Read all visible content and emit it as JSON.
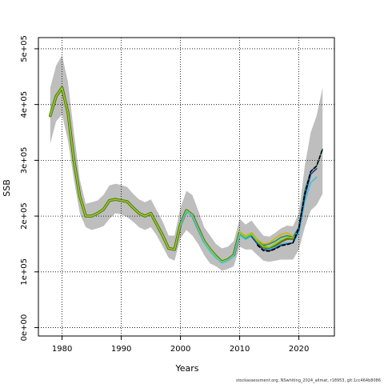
{
  "chart_data": {
    "type": "line",
    "title": "",
    "xlabel": "Years",
    "ylabel": "SSB",
    "xlim": [
      1976,
      2026
    ],
    "ylim": [
      -15000,
      520000
    ],
    "x_ticks": [
      1980,
      1990,
      2000,
      2010,
      2020
    ],
    "y_ticks": [
      0,
      100000,
      200000,
      300000,
      400000,
      500000
    ],
    "y_tick_labels": [
      "0e+00",
      "1e+05",
      "2e+05",
      "3e+05",
      "4e+05",
      "5e+05"
    ],
    "grid": true,
    "grid_style": "dotted",
    "band": {
      "color": "#bebebe",
      "x": [
        1978,
        1979,
        1980,
        1981,
        1982,
        1983,
        1984,
        1985,
        1986,
        1987,
        1988,
        1989,
        1990,
        1991,
        1992,
        1993,
        1994,
        1995,
        1996,
        1997,
        1998,
        1999,
        2000,
        2001,
        2002,
        2003,
        2004,
        2005,
        2006,
        2007,
        2008,
        2009,
        2010,
        2011,
        2012,
        2013,
        2014,
        2015,
        2016,
        2017,
        2018,
        2019,
        2020,
        2021,
        2022,
        2023,
        2024
      ],
      "upper": [
        430000,
        470000,
        488000,
        440000,
        350000,
        265000,
        222000,
        225000,
        228000,
        238000,
        255000,
        258000,
        256000,
        252000,
        240000,
        230000,
        225000,
        230000,
        210000,
        190000,
        165000,
        165000,
        215000,
        245000,
        238000,
        210000,
        180000,
        165000,
        150000,
        142000,
        145000,
        155000,
        195000,
        185000,
        192000,
        178000,
        165000,
        163000,
        170000,
        178000,
        183000,
        182000,
        205000,
        290000,
        350000,
        380000,
        430000
      ],
      "lower": [
        330000,
        370000,
        382000,
        335000,
        265000,
        205000,
        180000,
        175000,
        178000,
        182000,
        195000,
        205000,
        203000,
        198000,
        190000,
        180000,
        175000,
        180000,
        165000,
        145000,
        125000,
        120000,
        160000,
        175000,
        165000,
        150000,
        130000,
        115000,
        110000,
        102000,
        105000,
        110000,
        145000,
        140000,
        140000,
        130000,
        120000,
        118000,
        120000,
        122000,
        122000,
        122000,
        140000,
        180000,
        210000,
        220000,
        240000
      ]
    },
    "series": [
      {
        "color": "#6b6b00",
        "width": 3.6,
        "x": [
          1978,
          1979,
          1980,
          1981,
          1982,
          1983,
          1984,
          1985,
          1986,
          1987,
          1988,
          1989,
          1990,
          1991,
          1992,
          1993,
          1994,
          1995,
          1996,
          1997,
          1998,
          1999,
          2000,
          2001,
          2002,
          2003,
          2004,
          2005,
          2006,
          2007,
          2008,
          2009,
          2010,
          2011,
          2012,
          2013,
          2014,
          2015,
          2016,
          2017,
          2018,
          2019
        ],
        "y": [
          380000,
          415000,
          430000,
          385000,
          300000,
          235000,
          200000,
          200000,
          205000,
          212000,
          228000,
          230000,
          228000,
          226000,
          215000,
          205000,
          200000,
          205000,
          185000,
          165000,
          142000,
          140000,
          185000,
          210000,
          202000,
          178000,
          155000,
          140000,
          128000,
          118000,
          122000,
          130000,
          170000,
          162000,
          168000,
          155000,
          145000,
          142000,
          148000,
          155000,
          160000,
          160000
        ]
      },
      {
        "color": "#2e8b57",
        "width": 1.6,
        "x": [
          1978,
          1979,
          1980,
          1981,
          1982,
          1983,
          1984,
          1985,
          1986,
          1987,
          1988,
          1989,
          1990,
          1991,
          1992,
          1993,
          1994,
          1995,
          1996,
          1997,
          1998,
          1999,
          2000,
          2001,
          2002,
          2003,
          2004,
          2005,
          2006,
          2007,
          2008,
          2009,
          2010,
          2011,
          2012,
          2013,
          2014,
          2015,
          2016,
          2017,
          2018,
          2019,
          2020,
          2021,
          2022,
          2023,
          2024
        ],
        "y": [
          380000,
          415000,
          430000,
          385000,
          300000,
          235000,
          200000,
          200000,
          205000,
          212000,
          228000,
          230000,
          228000,
          226000,
          215000,
          205000,
          200000,
          205000,
          185000,
          165000,
          142000,
          140000,
          185000,
          210000,
          202000,
          178000,
          155000,
          140000,
          128000,
          118000,
          122000,
          130000,
          168000,
          160000,
          166000,
          153000,
          148000,
          150000,
          155000,
          162000,
          165000,
          162000,
          180000,
          245000,
          280000,
          290000,
          320000
        ]
      },
      {
        "color": "#d4b300",
        "width": 1.6,
        "x": [
          2010,
          2011,
          2012,
          2013,
          2014,
          2015,
          2016,
          2017,
          2018,
          2019
        ],
        "y": [
          172000,
          164000,
          170000,
          158000,
          150000,
          152000,
          160000,
          167000,
          170000,
          164000
        ]
      },
      {
        "color": "#7fd632",
        "width": 1.6,
        "x": [
          1978,
          1979,
          1980,
          1981,
          1982,
          1983,
          1984,
          1985,
          1986,
          1987,
          1988,
          1989,
          1990,
          1991,
          1992,
          1993,
          1994,
          1995,
          1996,
          1997,
          1998,
          1999,
          2000,
          2001,
          2002,
          2003,
          2004,
          2005,
          2006,
          2007,
          2008,
          2009,
          2010,
          2011,
          2012,
          2013,
          2014,
          2015,
          2016,
          2017,
          2018,
          2019
        ],
        "y": [
          380000,
          415000,
          430000,
          385000,
          300000,
          235000,
          200000,
          200000,
          205000,
          212000,
          228000,
          230000,
          228000,
          226000,
          215000,
          205000,
          200000,
          205000,
          185000,
          165000,
          142000,
          140000,
          185000,
          210000,
          202000,
          178000,
          155000,
          140000,
          128000,
          118000,
          122000,
          130000,
          170000,
          162000,
          168000,
          155000,
          145000,
          144000,
          150000,
          157000,
          162000,
          161000
        ]
      },
      {
        "color": "#40c4d8",
        "width": 1.6,
        "x": [
          2000,
          2001,
          2002,
          2003,
          2004,
          2005,
          2006,
          2007,
          2008,
          2009,
          2010,
          2011,
          2012,
          2013,
          2014,
          2015,
          2016,
          2017,
          2018,
          2019,
          2020,
          2021,
          2022,
          2023
        ],
        "y": [
          183000,
          208000,
          200000,
          176000,
          152000,
          137000,
          125000,
          116000,
          120000,
          128000,
          166000,
          158000,
          164000,
          150000,
          140000,
          140000,
          144000,
          150000,
          152000,
          152000,
          170000,
          225000,
          260000,
          270000
        ]
      },
      {
        "color": "#1e3fa0",
        "width": 1.6,
        "x": [
          2012,
          2013,
          2014,
          2015,
          2016,
          2017,
          2018,
          2019,
          2020,
          2021,
          2022,
          2023
        ],
        "y": [
          163000,
          150000,
          140000,
          138000,
          142000,
          148000,
          150000,
          152000,
          175000,
          235000,
          275000,
          285000
        ]
      },
      {
        "color": "#000000",
        "width": 1.6,
        "dash": "4 3",
        "x": [
          2013,
          2014,
          2015,
          2016,
          2017,
          2018,
          2019,
          2020,
          2021,
          2022,
          2023,
          2024
        ],
        "y": [
          148000,
          138000,
          137000,
          141000,
          147000,
          149000,
          152000,
          180000,
          240000,
          280000,
          290000,
          320000
        ]
      }
    ]
  },
  "footer": {
    "source": "stockassessment.org, NSwhiting_2024_allmat, r18953, git:1cc464b8086"
  }
}
